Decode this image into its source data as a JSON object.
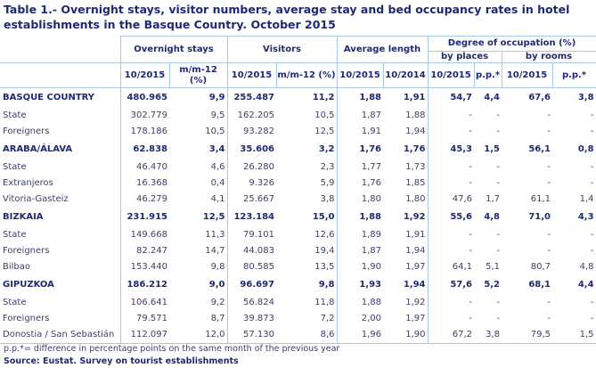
{
  "title": "Table 1.- Overnight stays, visitor numbers, average stay and bed occupancy rates in hotel establishments in the Basque Country. October 2015",
  "headers": {
    "overnight_stays": "Overnight stays",
    "visitors": "Visitors",
    "average_length": "Average length",
    "degree_of_occupation": "Degree of occupation (%)",
    "by_places": "by places",
    "by_rooms": "by rooms",
    "cols": [
      "10/2015",
      "m/m-12 (%)",
      "10/2015",
      "m/m-12 (%)",
      "10/2015",
      "10/2014",
      "10/2015",
      "p.p.*",
      "10/2015",
      "p.p.*"
    ]
  },
  "rows": [
    {
      "label": "BASQUE COUNTRY",
      "bold": true,
      "values": [
        "480.965",
        "9,9",
        "255.487",
        "11,2",
        "1,88",
        "1,91",
        "54,7",
        "4,4",
        "67,6",
        "3,8"
      ]
    },
    {
      "label": "State",
      "values": [
        "302.779",
        "9,5",
        "162.205",
        "10,5",
        "1,87",
        "1,88",
        "-",
        "-",
        "-",
        "-"
      ]
    },
    {
      "label": "Foreigners",
      "values": [
        "178.186",
        "10,5",
        "93.282",
        "12,5",
        "1,91",
        "1,94",
        "-",
        "-",
        "-",
        "-"
      ]
    },
    {
      "label": "ARABA/ÁLAVA",
      "bold": true,
      "values": [
        "62.838",
        "3,4",
        "35.606",
        "3,2",
        "1,76",
        "1,76",
        "45,3",
        "1,5",
        "56,1",
        "0,8"
      ]
    },
    {
      "label": "State",
      "values": [
        "46.470",
        "4,6",
        "26.280",
        "2,3",
        "1,77",
        "1,73",
        "-",
        "-",
        "-",
        "-"
      ]
    },
    {
      "label": "Extranjeros",
      "values": [
        "16.368",
        "0,4",
        "9.326",
        "5,9",
        "1,76",
        "1,85",
        "-",
        "-",
        "-",
        "-"
      ]
    },
    {
      "label": "Vitoria-Gasteiz",
      "values": [
        "46.279",
        "4,1",
        "25.667",
        "3,8",
        "1,80",
        "1,80",
        "47,6",
        "1,7",
        "61,1",
        "1,4"
      ]
    },
    {
      "label": "BIZKAIA",
      "bold": true,
      "values": [
        "231.915",
        "12,5",
        "123.184",
        "15,0",
        "1,88",
        "1,92",
        "55,6",
        "4,8",
        "71,0",
        "4,3"
      ]
    },
    {
      "label": "State",
      "values": [
        "149.668",
        "11,3",
        "79.101",
        "12,6",
        "1,89",
        "1,91",
        "-",
        "-",
        "-",
        "-"
      ]
    },
    {
      "label": "Foreigners",
      "values": [
        "82.247",
        "14,7",
        "44.083",
        "19,4",
        "1,87",
        "1,94",
        "-",
        "-",
        "-",
        "-"
      ]
    },
    {
      "label": "Bilbao",
      "values": [
        "153.440",
        "9,8",
        "80.585",
        "13,5",
        "1,90",
        "1,97",
        "64,1",
        "5,1",
        "80,7",
        "4,8"
      ]
    },
    {
      "label": "GIPUZKOA",
      "bold": true,
      "values": [
        "186.212",
        "9,0",
        "96.697",
        "9,8",
        "1,93",
        "1,94",
        "57,6",
        "5,2",
        "68,1",
        "4,4"
      ]
    },
    {
      "label": "State",
      "values": [
        "106.641",
        "9,2",
        "56.824",
        "11,8",
        "1,88",
        "1,92",
        "-",
        "-",
        "-",
        "-"
      ]
    },
    {
      "label": "Foreigners",
      "values": [
        "79.571",
        "8,7",
        "39.873",
        "7,2",
        "2,00",
        "1,97",
        "-",
        "-",
        "-",
        "-"
      ]
    },
    {
      "label": "Donostia / San Sebastián",
      "values": [
        "112.097",
        "12,0",
        "57.130",
        "8,6",
        "1,96",
        "1,90",
        "67,2",
        "3,8",
        "79,5",
        "1,5"
      ]
    }
  ],
  "footnote": "p.p.*= difference in percentage points on the same month of the previous year",
  "source": "Source: Eustat. Survey on tourist establishments"
}
